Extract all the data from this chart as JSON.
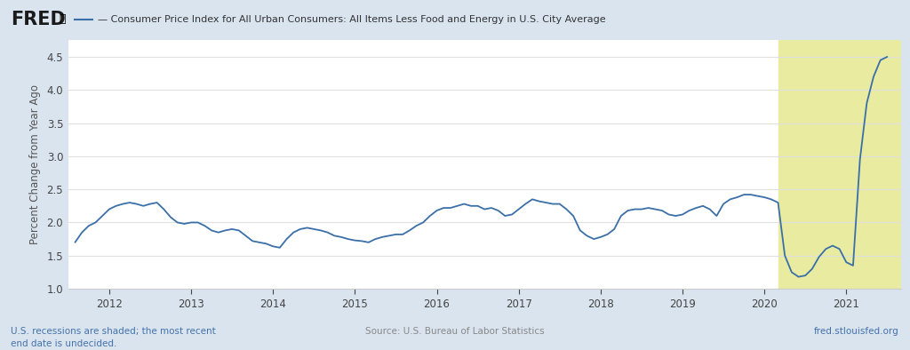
{
  "title": "Consumer Price Index for All Urban Consumers: All Items Less Food and Energy in U.S. City Average",
  "ylabel": "Percent Change from Year Ago",
  "ylim": [
    1.0,
    4.75
  ],
  "yticks": [
    1.0,
    1.5,
    2.0,
    2.5,
    3.0,
    3.5,
    4.0,
    4.5
  ],
  "bg_color": "#d9e4ef",
  "plot_bg": "#ffffff",
  "line_color": "#3a6fa8",
  "recession_color": "#e8eba0",
  "recession_start": 2020.167,
  "recession_end": 2021.667,
  "fred_text_color": "#4472aa",
  "footer_text_color": "#888888",
  "dates": [
    2011.583,
    2011.667,
    2011.75,
    2011.833,
    2011.917,
    2012.0,
    2012.083,
    2012.167,
    2012.25,
    2012.333,
    2012.417,
    2012.5,
    2012.583,
    2012.667,
    2012.75,
    2012.833,
    2012.917,
    2013.0,
    2013.083,
    2013.167,
    2013.25,
    2013.333,
    2013.417,
    2013.5,
    2013.583,
    2013.667,
    2013.75,
    2013.833,
    2013.917,
    2014.0,
    2014.083,
    2014.167,
    2014.25,
    2014.333,
    2014.417,
    2014.5,
    2014.583,
    2014.667,
    2014.75,
    2014.833,
    2014.917,
    2015.0,
    2015.083,
    2015.167,
    2015.25,
    2015.333,
    2015.417,
    2015.5,
    2015.583,
    2015.667,
    2015.75,
    2015.833,
    2015.917,
    2016.0,
    2016.083,
    2016.167,
    2016.25,
    2016.333,
    2016.417,
    2016.5,
    2016.583,
    2016.667,
    2016.75,
    2016.833,
    2016.917,
    2017.0,
    2017.083,
    2017.167,
    2017.25,
    2017.333,
    2017.417,
    2017.5,
    2017.583,
    2017.667,
    2017.75,
    2017.833,
    2017.917,
    2018.0,
    2018.083,
    2018.167,
    2018.25,
    2018.333,
    2018.417,
    2018.5,
    2018.583,
    2018.667,
    2018.75,
    2018.833,
    2018.917,
    2019.0,
    2019.083,
    2019.167,
    2019.25,
    2019.333,
    2019.417,
    2019.5,
    2019.583,
    2019.667,
    2019.75,
    2019.833,
    2019.917,
    2020.0,
    2020.083,
    2020.167,
    2020.25,
    2020.333,
    2020.417,
    2020.5,
    2020.583,
    2020.667,
    2020.75,
    2020.833,
    2020.917,
    2021.0,
    2021.083,
    2021.167,
    2021.25,
    2021.333,
    2021.417,
    2021.5
  ],
  "values": [
    1.7,
    1.85,
    1.95,
    2.0,
    2.1,
    2.2,
    2.25,
    2.28,
    2.3,
    2.28,
    2.25,
    2.28,
    2.3,
    2.2,
    2.08,
    2.0,
    1.98,
    2.0,
    2.0,
    1.95,
    1.88,
    1.85,
    1.88,
    1.9,
    1.88,
    1.8,
    1.72,
    1.7,
    1.68,
    1.64,
    1.62,
    1.75,
    1.85,
    1.9,
    1.92,
    1.9,
    1.88,
    1.85,
    1.8,
    1.78,
    1.75,
    1.73,
    1.72,
    1.7,
    1.75,
    1.78,
    1.8,
    1.82,
    1.82,
    1.88,
    1.95,
    2.0,
    2.1,
    2.18,
    2.22,
    2.22,
    2.25,
    2.28,
    2.25,
    2.25,
    2.2,
    2.22,
    2.18,
    2.1,
    2.12,
    2.2,
    2.28,
    2.35,
    2.32,
    2.3,
    2.28,
    2.28,
    2.2,
    2.1,
    1.88,
    1.8,
    1.75,
    1.78,
    1.82,
    1.9,
    2.1,
    2.18,
    2.2,
    2.2,
    2.22,
    2.2,
    2.18,
    2.12,
    2.1,
    2.12,
    2.18,
    2.22,
    2.25,
    2.2,
    2.1,
    2.28,
    2.35,
    2.38,
    2.42,
    2.42,
    2.4,
    2.38,
    2.35,
    2.3,
    1.5,
    1.25,
    1.18,
    1.2,
    1.3,
    1.48,
    1.6,
    1.65,
    1.6,
    1.4,
    1.35,
    2.95,
    3.8,
    4.2,
    4.45,
    4.5
  ],
  "xtick_years": [
    2012,
    2013,
    2014,
    2015,
    2016,
    2017,
    2018,
    2019,
    2020,
    2021
  ],
  "xmin": 2011.5,
  "xmax": 2021.667,
  "legend_label": "Consumer Price Index for All Urban Consumers: All Items Less Food and Energy in U.S. City Average",
  "footer_left": "U.S. recessions are shaded; the most recent\nend date is undecided.",
  "footer_center": "Source: U.S. Bureau of Labor Statistics",
  "footer_right": "fred.stlouisfed.org"
}
